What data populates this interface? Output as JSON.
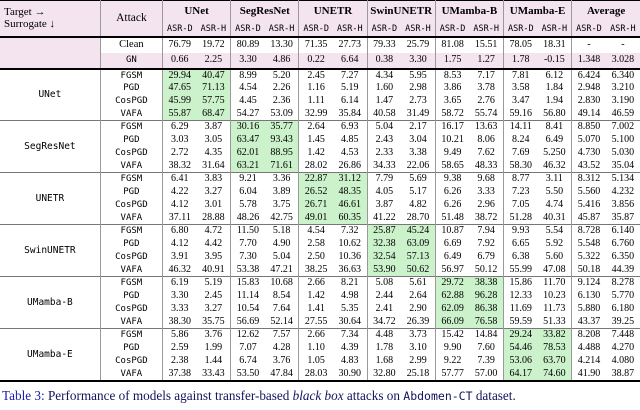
{
  "colors": {
    "header_bg": "#f4e4f0",
    "highlight_bg": "#ccf2cb"
  },
  "table": {
    "corner_line1": "Target →",
    "corner_line2": "Surrogate ↓",
    "attack_header": "Attack",
    "model_groups": [
      "UNet",
      "SegResNet",
      "UNETR",
      "SwinUNETR",
      "UMamba-B",
      "UMamba-E",
      "Average"
    ],
    "sub_headers": [
      "ASR-D",
      "ASR-H"
    ],
    "baseline_rows": [
      {
        "attack": "Clean",
        "mono": false,
        "shaded": false,
        "values": [
          "76.79",
          "19.72",
          "80.89",
          "13.30",
          "71.35",
          "27.73",
          "79.33",
          "25.79",
          "81.08",
          "15.51",
          "78.05",
          "18.31",
          "-",
          "-"
        ]
      },
      {
        "attack": "GN",
        "mono": true,
        "shaded": true,
        "values": [
          "0.66",
          "2.25",
          "3.30",
          "4.86",
          "0.22",
          "6.64",
          "0.38",
          "3.30",
          "1.75",
          "1.27",
          "1.78",
          "-0.15",
          "1.348",
          "3.028"
        ]
      }
    ],
    "surrogate_groups": [
      {
        "surrogate": "UNet",
        "highlight_group": 0,
        "rows": [
          {
            "attack": "FGSM",
            "values": [
              "29.94",
              "40.47",
              "8.99",
              "5.20",
              "2.45",
              "7.27",
              "4.34",
              "5.95",
              "8.53",
              "7.17",
              "7.81",
              "6.12",
              "6.424",
              "6.340"
            ]
          },
          {
            "attack": "PGD",
            "values": [
              "47.65",
              "71.13",
              "4.54",
              "2.26",
              "1.16",
              "5.19",
              "1.60",
              "2.98",
              "3.86",
              "3.78",
              "3.58",
              "1.84",
              "2.948",
              "3.210"
            ]
          },
          {
            "attack": "CosPGD",
            "values": [
              "45.99",
              "57.75",
              "4.45",
              "2.36",
              "1.11",
              "6.14",
              "1.47",
              "2.73",
              "3.65",
              "2.76",
              "3.47",
              "1.94",
              "2.830",
              "3.190"
            ]
          },
          {
            "attack": "VAFA",
            "values": [
              "55.87",
              "68.47",
              "54.27",
              "53.09",
              "32.99",
              "35.84",
              "40.58",
              "31.49",
              "58.72",
              "55.74",
              "59.16",
              "56.80",
              "49.14",
              "46.59"
            ]
          }
        ]
      },
      {
        "surrogate": "SegResNet",
        "highlight_group": 1,
        "rows": [
          {
            "attack": "FGSM",
            "values": [
              "6.29",
              "3.87",
              "30.16",
              "35.77",
              "2.64",
              "6.93",
              "5.04",
              "2.17",
              "16.17",
              "13.63",
              "14.11",
              "8.41",
              "8.850",
              "7.002"
            ]
          },
          {
            "attack": "PGD",
            "values": [
              "3.03",
              "3.05",
              "63.47",
              "93.43",
              "1.45",
              "4.85",
              "2.43",
              "3.04",
              "10.21",
              "8.06",
              "8.24",
              "6.49",
              "5.070",
              "5.100"
            ]
          },
          {
            "attack": "CosPGD",
            "values": [
              "2.72",
              "4.35",
              "62.01",
              "88.95",
              "1.42",
              "4.53",
              "2.33",
              "3.38",
              "9.49",
              "7.62",
              "7.69",
              "5.250",
              "4.730",
              "5.030"
            ]
          },
          {
            "attack": "VAFA",
            "values": [
              "38.32",
              "31.64",
              "63.21",
              "71.61",
              "28.02",
              "26.86",
              "34.33",
              "22.06",
              "58.65",
              "48.33",
              "58.30",
              "46.32",
              "43.52",
              "35.04"
            ]
          }
        ]
      },
      {
        "surrogate": "UNETR",
        "highlight_group": 2,
        "rows": [
          {
            "attack": "FGSM",
            "values": [
              "6.41",
              "3.83",
              "9.21",
              "3.36",
              "22.87",
              "31.12",
              "7.79",
              "5.69",
              "9.38",
              "9.68",
              "8.77",
              "3.11",
              "8.312",
              "5.134"
            ]
          },
          {
            "attack": "PGD",
            "values": [
              "4.22",
              "3.27",
              "6.04",
              "3.89",
              "26.52",
              "48.35",
              "4.05",
              "5.17",
              "6.26",
              "3.33",
              "7.23",
              "5.50",
              "5.560",
              "4.232"
            ]
          },
          {
            "attack": "CosPGD",
            "values": [
              "4.12",
              "3.01",
              "5.78",
              "3.75",
              "26.71",
              "46.61",
              "3.87",
              "4.82",
              "6.26",
              "2.96",
              "7.05",
              "4.74",
              "5.416",
              "3.856"
            ]
          },
          {
            "attack": "VAFA",
            "values": [
              "37.11",
              "28.88",
              "48.26",
              "42.75",
              "49.01",
              "60.35",
              "41.22",
              "28.70",
              "51.48",
              "38.72",
              "51.28",
              "40.31",
              "45.87",
              "35.87"
            ]
          }
        ]
      },
      {
        "surrogate": "SwinUNETR",
        "highlight_group": 3,
        "rows": [
          {
            "attack": "FGSM",
            "values": [
              "6.80",
              "4.72",
              "11.50",
              "5.18",
              "4.54",
              "7.32",
              "25.87",
              "45.24",
              "10.87",
              "7.94",
              "9.93",
              "5.54",
              "8.728",
              "6.140"
            ]
          },
          {
            "attack": "PGD",
            "values": [
              "4.12",
              "4.42",
              "7.70",
              "4.90",
              "2.58",
              "10.62",
              "32.38",
              "63.09",
              "6.69",
              "7.92",
              "6.65",
              "5.92",
              "5.548",
              "6.760"
            ]
          },
          {
            "attack": "CosPGD",
            "values": [
              "3.91",
              "3.95",
              "7.30",
              "5.04",
              "2.50",
              "10.36",
              "32.54",
              "57.13",
              "6.49",
              "6.79",
              "6.38",
              "5.60",
              "5.322",
              "6.350"
            ]
          },
          {
            "attack": "VAFA",
            "values": [
              "46.32",
              "40.91",
              "53.38",
              "47.21",
              "38.25",
              "36.63",
              "53.90",
              "50.62",
              "56.97",
              "50.12",
              "55.99",
              "47.08",
              "50.18",
              "44.39"
            ]
          }
        ]
      },
      {
        "surrogate": "UMamba-B",
        "highlight_group": 4,
        "rows": [
          {
            "attack": "FGSM",
            "values": [
              "6.19",
              "5.19",
              "15.83",
              "10.68",
              "2.66",
              "8.21",
              "5.08",
              "5.61",
              "29.72",
              "38.38",
              "15.86",
              "11.70",
              "9.124",
              "8.278"
            ]
          },
          {
            "attack": "PGD",
            "values": [
              "3.30",
              "2.45",
              "11.14",
              "8.54",
              "1.42",
              "4.98",
              "2.44",
              "2.64",
              "62.88",
              "96.28",
              "12.33",
              "10.23",
              "6.130",
              "5.770"
            ]
          },
          {
            "attack": "CosPGD",
            "values": [
              "3.33",
              "3.27",
              "10.54",
              "7.64",
              "1.41",
              "5.35",
              "2.41",
              "2.90",
              "62.09",
              "86.38",
              "11.69",
              "11.73",
              "5.880",
              "6.180"
            ]
          },
          {
            "attack": "VAFA",
            "values": [
              "38.30",
              "35.75",
              "56.69",
              "52.14",
              "27.55",
              "30.64",
              "34.72",
              "26.39",
              "66.09",
              "76.58",
              "59.59",
              "51.33",
              "43.37",
              "39.25"
            ]
          }
        ]
      },
      {
        "surrogate": "UMamba-E",
        "highlight_group": 5,
        "rows": [
          {
            "attack": "FGSM",
            "values": [
              "5.86",
              "3.76",
              "12.62",
              "7.57",
              "2.66",
              "7.34",
              "4.48",
              "3.73",
              "15.42",
              "14.84",
              "29.24",
              "33.82",
              "8.208",
              "7.448"
            ]
          },
          {
            "attack": "PGD",
            "values": [
              "2.59",
              "1.99",
              "7.07",
              "4.28",
              "1.10",
              "4.39",
              "1.78",
              "3.10",
              "9.90",
              "7.60",
              "54.46",
              "78.53",
              "4.488",
              "4.270"
            ]
          },
          {
            "attack": "CosPGD",
            "values": [
              "2.38",
              "1.44",
              "6.74",
              "3.76",
              "1.05",
              "4.83",
              "1.68",
              "2.99",
              "9.22",
              "7.39",
              "53.06",
              "63.70",
              "4.214",
              "4.080"
            ]
          },
          {
            "attack": "VAFA",
            "values": [
              "37.38",
              "33.43",
              "53.50",
              "47.84",
              "28.03",
              "30.90",
              "32.80",
              "25.18",
              "57.77",
              "57.00",
              "64.17",
              "74.60",
              "41.90",
              "38.87"
            ]
          }
        ]
      }
    ]
  },
  "caption": {
    "label": "Table 3:",
    "part1": " Performance of models against transfer-based ",
    "italic": "black box",
    "part2": " attacks on ",
    "code": "Abdomen-CT",
    "part3": " dataset."
  }
}
